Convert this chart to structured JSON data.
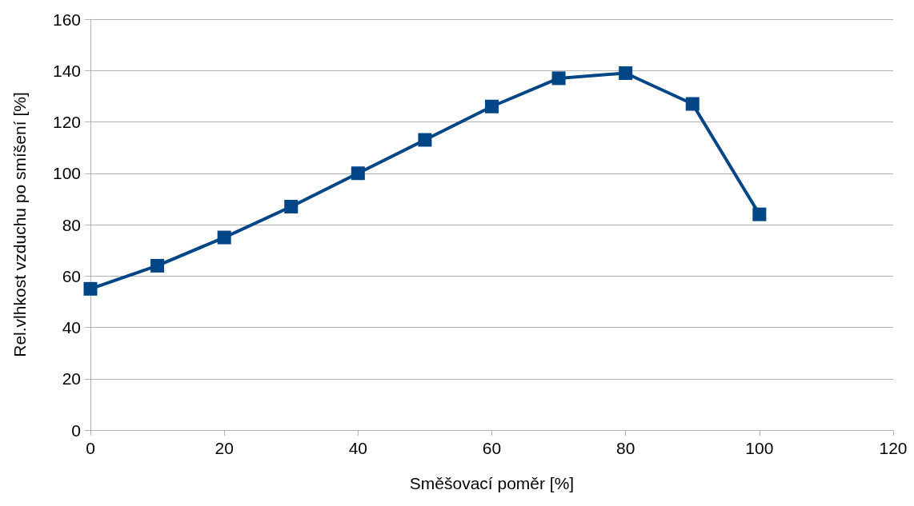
{
  "chart_data": {
    "type": "line",
    "xlabel": "Směšovací poměr [%]",
    "ylabel": "Rel.vlhkost vzduchu po smíšení [%]",
    "x": [
      0,
      10,
      20,
      30,
      40,
      50,
      60,
      70,
      80,
      90,
      100
    ],
    "series": [
      {
        "color": "#004586",
        "values": [
          55,
          64,
          75,
          87,
          100,
          113,
          126,
          137,
          139,
          127,
          84
        ]
      }
    ],
    "xlim": [
      0,
      120
    ],
    "xticks": [
      0,
      20,
      40,
      60,
      80,
      100,
      120
    ],
    "ylim": [
      0,
      160
    ],
    "yticks": [
      0,
      20,
      40,
      60,
      80,
      100,
      120,
      140,
      160
    ],
    "grid": "y",
    "marker": "square",
    "line_style": "solid"
  }
}
